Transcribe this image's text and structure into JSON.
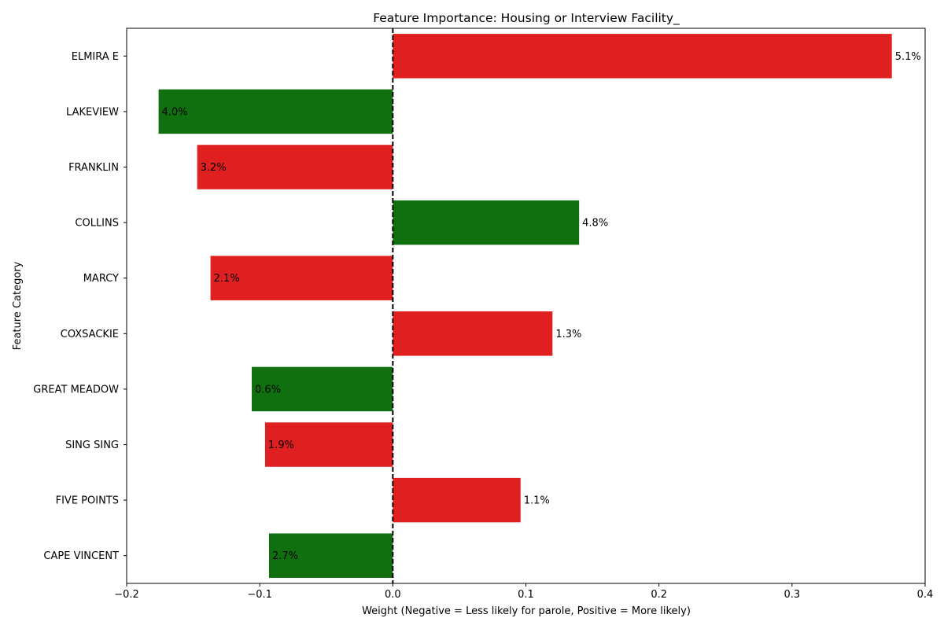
{
  "chart_data": {
    "type": "bar",
    "orientation": "horizontal",
    "title": "Feature Importance: Housing or Interview Facility_",
    "xlabel": "Weight (Negative = Less likely for parole, Positive = More likely)",
    "ylabel": "Feature Category",
    "xlim": [
      -0.2,
      0.4
    ],
    "xticks": [
      -0.2,
      -0.1,
      0.0,
      0.1,
      0.2,
      0.3,
      0.4
    ],
    "xtick_labels": [
      "−0.2",
      "−0.1",
      "0.0",
      "0.1",
      "0.2",
      "0.3",
      "0.4"
    ],
    "zero_line": {
      "style": "dashed",
      "color": "#000000"
    },
    "grid": false,
    "categories": [
      "ELMIRA E",
      "LAKEVIEW",
      "FRANKLIN",
      "COLLINS",
      "MARCY",
      "COXSACKIE",
      "GREAT MEADOW",
      "SING SING",
      "FIVE POINTS",
      "CAPE VINCENT"
    ],
    "values": [
      0.375,
      -0.176,
      -0.147,
      0.14,
      -0.137,
      0.12,
      -0.106,
      -0.096,
      0.096,
      -0.093
    ],
    "labels": [
      "5.1%",
      "4.0%",
      "3.2%",
      "4.8%",
      "2.1%",
      "1.3%",
      "0.6%",
      "1.9%",
      "1.1%",
      "2.7%"
    ],
    "colors": [
      "#e02020",
      "#107010",
      "#e02020",
      "#107010",
      "#e02020",
      "#e02020",
      "#107010",
      "#e02020",
      "#e02020",
      "#107010"
    ]
  }
}
